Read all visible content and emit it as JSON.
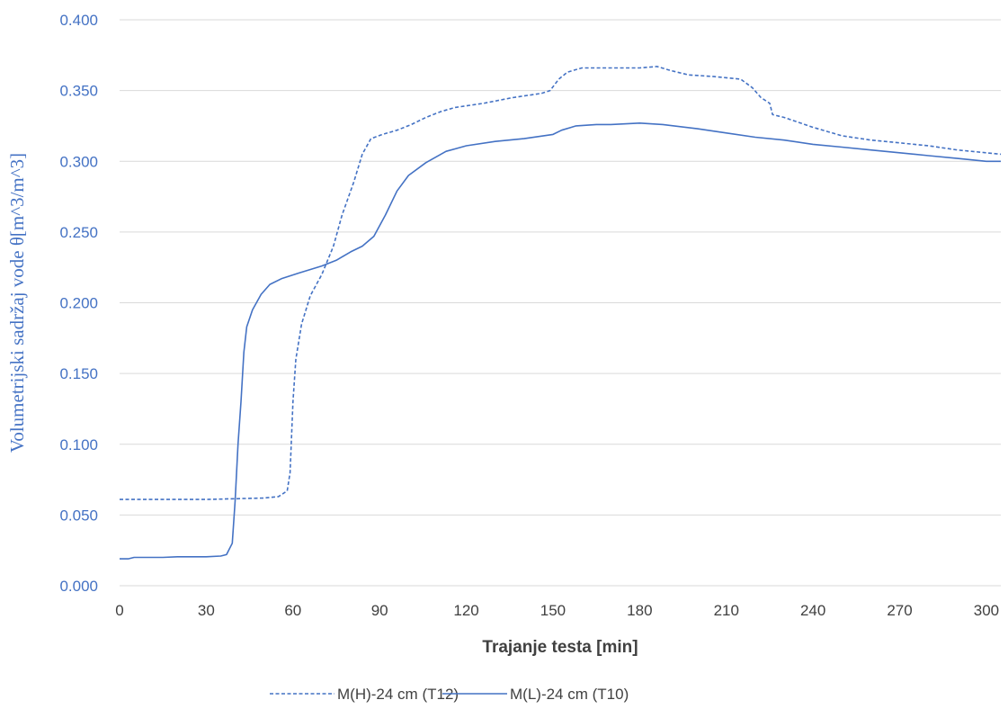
{
  "chart_data": {
    "type": "line",
    "xlabel": "Trajanje testa [min]",
    "ylabel": "Volumetrijski sadržaj vode θ[m^3/m^3]",
    "xlim": [
      0,
      305
    ],
    "ylim": [
      0,
      0.4
    ],
    "x_ticks": [
      0,
      30,
      60,
      90,
      120,
      150,
      180,
      210,
      240,
      270,
      300
    ],
    "y_ticks": [
      "0.000",
      "0.050",
      "0.100",
      "0.150",
      "0.200",
      "0.250",
      "0.300",
      "0.350",
      "0.400"
    ],
    "grid": "horizontal",
    "legend_position": "bottom",
    "series": [
      {
        "name": "M(H)-24 cm (T12)",
        "style": "dashed",
        "color": "#4472c4",
        "points": [
          [
            0,
            0.061
          ],
          [
            10,
            0.061
          ],
          [
            20,
            0.061
          ],
          [
            30,
            0.061
          ],
          [
            40,
            0.0615
          ],
          [
            50,
            0.062
          ],
          [
            55,
            0.063
          ],
          [
            58,
            0.067
          ],
          [
            59,
            0.08
          ],
          [
            60,
            0.13
          ],
          [
            61,
            0.16
          ],
          [
            63,
            0.185
          ],
          [
            66,
            0.205
          ],
          [
            70,
            0.22
          ],
          [
            74,
            0.24
          ],
          [
            77,
            0.262
          ],
          [
            81,
            0.285
          ],
          [
            84,
            0.305
          ],
          [
            87,
            0.316
          ],
          [
            91,
            0.319
          ],
          [
            96,
            0.322
          ],
          [
            101,
            0.326
          ],
          [
            106,
            0.331
          ],
          [
            111,
            0.335
          ],
          [
            116,
            0.338
          ],
          [
            126,
            0.341
          ],
          [
            136,
            0.345
          ],
          [
            146,
            0.348
          ],
          [
            149,
            0.35
          ],
          [
            152,
            0.358
          ],
          [
            155,
            0.363
          ],
          [
            160,
            0.366
          ],
          [
            170,
            0.366
          ],
          [
            180,
            0.366
          ],
          [
            186,
            0.367
          ],
          [
            191,
            0.364
          ],
          [
            197,
            0.361
          ],
          [
            205,
            0.36
          ],
          [
            215,
            0.358
          ],
          [
            219,
            0.352
          ],
          [
            222,
            0.345
          ],
          [
            225,
            0.341
          ],
          [
            226,
            0.333
          ],
          [
            230,
            0.331
          ],
          [
            240,
            0.324
          ],
          [
            250,
            0.318
          ],
          [
            260,
            0.315
          ],
          [
            270,
            0.313
          ],
          [
            280,
            0.311
          ],
          [
            290,
            0.308
          ],
          [
            300,
            0.306
          ],
          [
            305,
            0.305
          ]
        ]
      },
      {
        "name": "M(L)-24 cm (T10)",
        "style": "solid",
        "color": "#4472c4",
        "points": [
          [
            0,
            0.019
          ],
          [
            3,
            0.019
          ],
          [
            5,
            0.02
          ],
          [
            10,
            0.02
          ],
          [
            15,
            0.02
          ],
          [
            20,
            0.0205
          ],
          [
            30,
            0.0205
          ],
          [
            35,
            0.021
          ],
          [
            37,
            0.022
          ],
          [
            39,
            0.03
          ],
          [
            40,
            0.06
          ],
          [
            41,
            0.1
          ],
          [
            42,
            0.13
          ],
          [
            43,
            0.165
          ],
          [
            44,
            0.183
          ],
          [
            46,
            0.195
          ],
          [
            49,
            0.206
          ],
          [
            52,
            0.213
          ],
          [
            56,
            0.217
          ],
          [
            62,
            0.221
          ],
          [
            70,
            0.226
          ],
          [
            75,
            0.23
          ],
          [
            80,
            0.236
          ],
          [
            84,
            0.24
          ],
          [
            88,
            0.247
          ],
          [
            92,
            0.262
          ],
          [
            96,
            0.279
          ],
          [
            100,
            0.29
          ],
          [
            106,
            0.299
          ],
          [
            113,
            0.307
          ],
          [
            120,
            0.311
          ],
          [
            130,
            0.314
          ],
          [
            140,
            0.316
          ],
          [
            150,
            0.319
          ],
          [
            153,
            0.322
          ],
          [
            158,
            0.325
          ],
          [
            165,
            0.326
          ],
          [
            170,
            0.326
          ],
          [
            180,
            0.327
          ],
          [
            188,
            0.326
          ],
          [
            200,
            0.323
          ],
          [
            210,
            0.32
          ],
          [
            220,
            0.317
          ],
          [
            230,
            0.315
          ],
          [
            240,
            0.312
          ],
          [
            250,
            0.31
          ],
          [
            260,
            0.308
          ],
          [
            270,
            0.306
          ],
          [
            280,
            0.304
          ],
          [
            290,
            0.302
          ],
          [
            300,
            0.3
          ],
          [
            305,
            0.3
          ]
        ]
      }
    ]
  }
}
